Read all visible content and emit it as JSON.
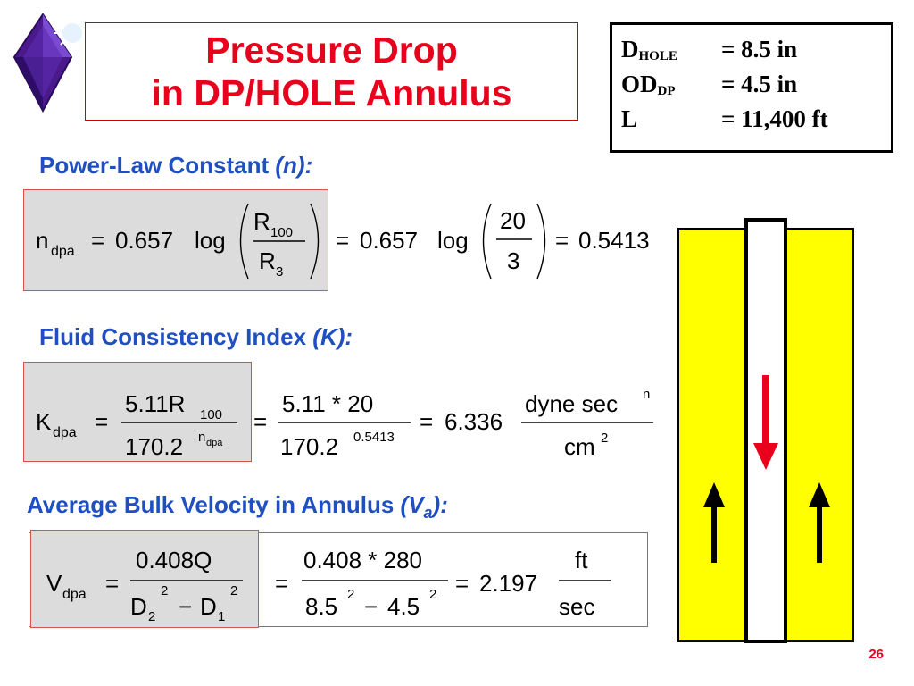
{
  "title": {
    "line1": "Pressure Drop",
    "line2": "in DP/HOLE Annulus"
  },
  "params": [
    {
      "label": "D",
      "sub": "HOLE",
      "value": "= 8.5  in"
    },
    {
      "label": "OD",
      "sub": "DP",
      "value": "= 4.5  in"
    },
    {
      "label": "L",
      "sub": "",
      "value": "= 11,400  ft"
    }
  ],
  "sections": {
    "n": {
      "heading": "Power-Law Constant",
      "heading_symbol": "(n):",
      "var": "n",
      "var_sub": "dpa",
      "coef": "0.657",
      "log": "log",
      "num": "R",
      "num_sub": "100",
      "den": "R",
      "den_sub": "3",
      "num_value": "20",
      "den_value": "3",
      "result": "0.5413"
    },
    "k": {
      "heading": "Fluid Consistency Index",
      "heading_symbol": "(K):",
      "var": "K",
      "var_sub": "dpa",
      "num": "5.11R",
      "num_sub": "100",
      "den": "170.2",
      "den_sup": "n",
      "den_sup_sub": "dpa",
      "num_value": "5.11 * 20",
      "den_value": "170.2",
      "den_value_sup": "0.5413",
      "result": "6.336",
      "unit_num": "dyne sec",
      "unit_num_sup": "n",
      "unit_den": "cm",
      "unit_den_sup": "2"
    },
    "v": {
      "heading": "Average Bulk Velocity in Annulus",
      "heading_symbol": "(V",
      "heading_symbol_sub": "a",
      "heading_symbol_end": "):",
      "var": "V",
      "var_sub": "dpa",
      "num": "0.408Q",
      "den_d2": "D",
      "den_d2_sub": "2",
      "den_d2_sup": "2",
      "den_d1": "D",
      "den_d1_sub": "1",
      "den_d1_sup": "2",
      "num_value": "0.408 * 280",
      "den_a": "8.5",
      "den_a_sup": "2",
      "den_b": "4.5",
      "den_b_sup": "2",
      "result": "2.197",
      "unit_num": "ft",
      "unit_den": "sec"
    }
  },
  "diagram": {
    "annulus_color": "#ffff00",
    "pipe_color": "#ffffff",
    "down_arrow_color": "#e8001c",
    "up_arrow_color": "#000000"
  },
  "page_number": "26",
  "icons": {
    "logo": "purple-diamond-star-logo"
  }
}
